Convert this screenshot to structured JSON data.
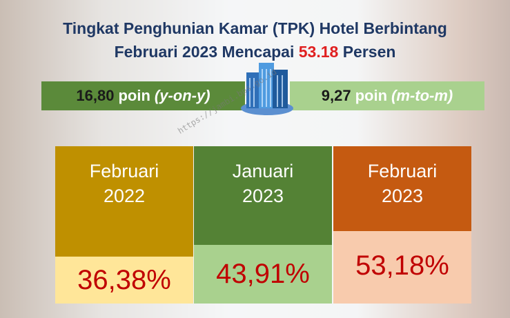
{
  "title": {
    "line1": "Tingkat Penghunian Kamar (TPK) Hotel Berbintang",
    "line2_start": "Februari 2023 Mencapai",
    "line2_highlight": "53.18",
    "line2_end": "Persen"
  },
  "changes": [
    {
      "value": "16,80",
      "unit": "poin",
      "period": "(y-on-y)"
    },
    {
      "value": "9,27",
      "unit": "poin",
      "period": "(m-to-m)"
    }
  ],
  "panels": [
    {
      "month": "Februari",
      "year": "2022",
      "value": "36,38%"
    },
    {
      "month": "Januari",
      "year": "2023",
      "value": "43,91%"
    },
    {
      "month": "Februari",
      "year": "2023",
      "value": "53,18%"
    }
  ],
  "watermark": "https://jambi.bps.go.id"
}
